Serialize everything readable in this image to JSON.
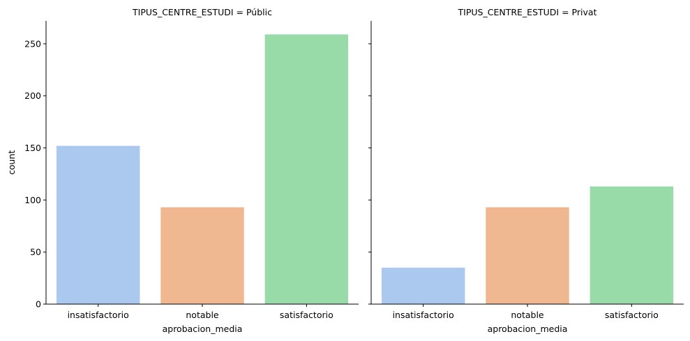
{
  "chart_data": {
    "type": "bar",
    "facet_variable": "TIPUS_CENTRE_ESTUDI",
    "shared_y": true,
    "ylim": [
      0,
      272
    ],
    "y_ticks": [
      0,
      50,
      100,
      150,
      200,
      250
    ],
    "ylabel": "count",
    "xlabel": "aprobacion_media",
    "categories": [
      "insatisfactorio",
      "notable",
      "satisfactorio"
    ],
    "colors": [
      "#abc9ee",
      "#f0b891",
      "#99daa9"
    ],
    "grid": false,
    "panels": [
      {
        "title": "TIPUS_CENTRE_ESTUDI = Públic",
        "values": [
          152,
          93,
          259
        ]
      },
      {
        "title": "TIPUS_CENTRE_ESTUDI = Privat",
        "values": [
          35,
          93,
          113
        ]
      }
    ]
  }
}
